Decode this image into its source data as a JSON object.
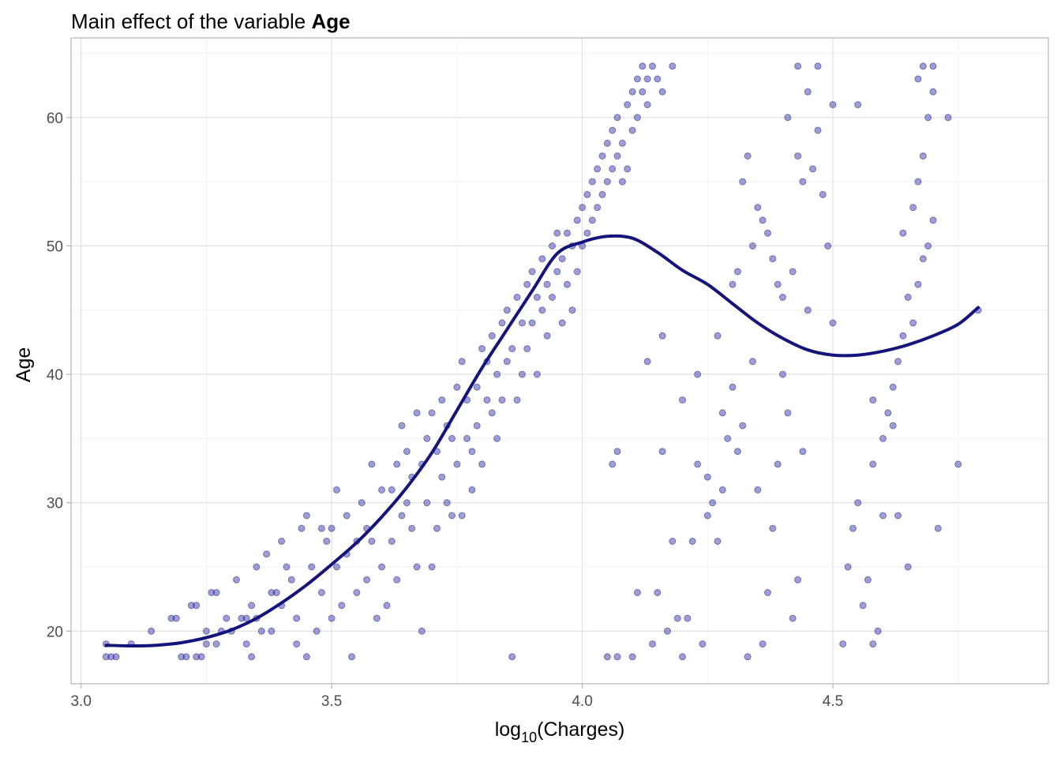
{
  "chart_data": {
    "type": "scatter",
    "title": "Main effect of the variable Age",
    "title_parts": {
      "prefix": "Main effect of the variable ",
      "bold": "Age"
    },
    "xlabel_parts": {
      "base": "log",
      "sub": "10",
      "rest": "(Charges)"
    },
    "ylabel": "Age",
    "xlim": [
      2.98,
      4.93
    ],
    "ylim": [
      15.9,
      66.2
    ],
    "x_ticks": [
      3.0,
      3.5,
      4.0,
      4.5
    ],
    "x_tick_labels": [
      "3.0",
      "3.5",
      "4.0",
      "4.5"
    ],
    "y_ticks": [
      20,
      30,
      40,
      50,
      60
    ],
    "y_tick_labels": [
      "20",
      "30",
      "40",
      "50",
      "60"
    ],
    "grid": true,
    "legend": "none",
    "point_fill": "#3b3bb0",
    "point_stroke": "#1e1e7a",
    "point_opacity": 0.5,
    "line_color": "#14147d",
    "points": [
      [
        3.05,
        18
      ],
      [
        3.06,
        18
      ],
      [
        3.07,
        18
      ],
      [
        3.05,
        19
      ],
      [
        3.1,
        19
      ],
      [
        3.14,
        20
      ],
      [
        3.18,
        21
      ],
      [
        3.19,
        21
      ],
      [
        3.2,
        18
      ],
      [
        3.21,
        18
      ],
      [
        3.22,
        22
      ],
      [
        3.23,
        18
      ],
      [
        3.24,
        18
      ],
      [
        3.23,
        22
      ],
      [
        3.25,
        20
      ],
      [
        3.25,
        19
      ],
      [
        3.26,
        23
      ],
      [
        3.27,
        23
      ],
      [
        3.27,
        19
      ],
      [
        3.28,
        20
      ],
      [
        3.29,
        21
      ],
      [
        3.3,
        20
      ],
      [
        3.31,
        24
      ],
      [
        3.32,
        21
      ],
      [
        3.33,
        21
      ],
      [
        3.33,
        19
      ],
      [
        3.34,
        18
      ],
      [
        3.34,
        22
      ],
      [
        3.35,
        25
      ],
      [
        3.35,
        21
      ],
      [
        3.36,
        20
      ],
      [
        3.37,
        26
      ],
      [
        3.38,
        20
      ],
      [
        3.38,
        23
      ],
      [
        3.39,
        23
      ],
      [
        3.4,
        27
      ],
      [
        3.4,
        22
      ],
      [
        3.41,
        25
      ],
      [
        3.42,
        24
      ],
      [
        3.43,
        19
      ],
      [
        3.43,
        21
      ],
      [
        3.44,
        28
      ],
      [
        3.45,
        29
      ],
      [
        3.45,
        18
      ],
      [
        3.46,
        25
      ],
      [
        3.47,
        20
      ],
      [
        3.48,
        28
      ],
      [
        3.48,
        23
      ],
      [
        3.49,
        27
      ],
      [
        3.5,
        28
      ],
      [
        3.5,
        21
      ],
      [
        3.51,
        25
      ],
      [
        3.51,
        31
      ],
      [
        3.52,
        22
      ],
      [
        3.53,
        29
      ],
      [
        3.53,
        26
      ],
      [
        3.54,
        18
      ],
      [
        3.55,
        27
      ],
      [
        3.55,
        23
      ],
      [
        3.56,
        30
      ],
      [
        3.57,
        28
      ],
      [
        3.57,
        24
      ],
      [
        3.58,
        33
      ],
      [
        3.58,
        27
      ],
      [
        3.59,
        21
      ],
      [
        3.6,
        31
      ],
      [
        3.6,
        25
      ],
      [
        3.61,
        22
      ],
      [
        3.62,
        31
      ],
      [
        3.62,
        27
      ],
      [
        3.63,
        33
      ],
      [
        3.63,
        24
      ],
      [
        3.64,
        36
      ],
      [
        3.64,
        29
      ],
      [
        3.65,
        34
      ],
      [
        3.65,
        30
      ],
      [
        3.66,
        32
      ],
      [
        3.66,
        28
      ],
      [
        3.67,
        37
      ],
      [
        3.67,
        25
      ],
      [
        3.68,
        33
      ],
      [
        3.68,
        20
      ],
      [
        3.69,
        35
      ],
      [
        3.69,
        30
      ],
      [
        3.7,
        37
      ],
      [
        3.7,
        25
      ],
      [
        3.71,
        34
      ],
      [
        3.71,
        28
      ],
      [
        3.72,
        38
      ],
      [
        3.72,
        32
      ],
      [
        3.73,
        36
      ],
      [
        3.73,
        30
      ],
      [
        3.74,
        35
      ],
      [
        3.74,
        29
      ],
      [
        3.75,
        39
      ],
      [
        3.75,
        33
      ],
      [
        3.76,
        41
      ],
      [
        3.76,
        29
      ],
      [
        3.77,
        38
      ],
      [
        3.77,
        35
      ],
      [
        3.78,
        34
      ],
      [
        3.78,
        31
      ],
      [
        3.79,
        39
      ],
      [
        3.79,
        36
      ],
      [
        3.8,
        42
      ],
      [
        3.8,
        33
      ],
      [
        3.81,
        38
      ],
      [
        3.81,
        41
      ],
      [
        3.82,
        37
      ],
      [
        3.82,
        43
      ],
      [
        3.83,
        40
      ],
      [
        3.83,
        35
      ],
      [
        3.84,
        44
      ],
      [
        3.84,
        38
      ],
      [
        3.85,
        45
      ],
      [
        3.85,
        41
      ],
      [
        3.86,
        42
      ],
      [
        3.86,
        18
      ],
      [
        3.87,
        46
      ],
      [
        3.87,
        38
      ],
      [
        3.88,
        44
      ],
      [
        3.88,
        40
      ],
      [
        3.89,
        47
      ],
      [
        3.89,
        42
      ],
      [
        3.9,
        48
      ],
      [
        3.9,
        44
      ],
      [
        3.91,
        46
      ],
      [
        3.91,
        40
      ],
      [
        3.92,
        49
      ],
      [
        3.92,
        45
      ],
      [
        3.93,
        47
      ],
      [
        3.93,
        43
      ],
      [
        3.94,
        50
      ],
      [
        3.94,
        46
      ],
      [
        3.95,
        51
      ],
      [
        3.95,
        48
      ],
      [
        3.96,
        49
      ],
      [
        3.96,
        44
      ],
      [
        3.97,
        51
      ],
      [
        3.97,
        47
      ],
      [
        3.98,
        50
      ],
      [
        3.98,
        45
      ],
      [
        3.99,
        52
      ],
      [
        3.99,
        48
      ],
      [
        4.0,
        53
      ],
      [
        4.0,
        50
      ],
      [
        4.01,
        54
      ],
      [
        4.01,
        51
      ],
      [
        4.02,
        55
      ],
      [
        4.02,
        52
      ],
      [
        4.03,
        56
      ],
      [
        4.03,
        53
      ],
      [
        4.04,
        57
      ],
      [
        4.04,
        54
      ],
      [
        4.05,
        58
      ],
      [
        4.05,
        55
      ],
      [
        4.06,
        59
      ],
      [
        4.06,
        56
      ],
      [
        4.07,
        60
      ],
      [
        4.07,
        57
      ],
      [
        4.08,
        58
      ],
      [
        4.08,
        55
      ],
      [
        4.09,
        61
      ],
      [
        4.09,
        56
      ],
      [
        4.1,
        62
      ],
      [
        4.1,
        59
      ],
      [
        4.11,
        63
      ],
      [
        4.11,
        60
      ],
      [
        4.12,
        62
      ],
      [
        4.12,
        64
      ],
      [
        4.13,
        63
      ],
      [
        4.13,
        61
      ],
      [
        4.14,
        64
      ],
      [
        4.15,
        63
      ],
      [
        4.16,
        62
      ],
      [
        4.18,
        64
      ],
      [
        4.06,
        33
      ],
      [
        4.07,
        34
      ],
      [
        4.05,
        18
      ],
      [
        4.07,
        18
      ],
      [
        4.1,
        18
      ],
      [
        4.11,
        23
      ],
      [
        4.13,
        41
      ],
      [
        4.14,
        19
      ],
      [
        4.15,
        23
      ],
      [
        4.16,
        34
      ],
      [
        4.16,
        43
      ],
      [
        4.17,
        20
      ],
      [
        4.18,
        27
      ],
      [
        4.19,
        21
      ],
      [
        4.2,
        18
      ],
      [
        4.2,
        38
      ],
      [
        4.21,
        21
      ],
      [
        4.22,
        27
      ],
      [
        4.23,
        40
      ],
      [
        4.23,
        33
      ],
      [
        4.24,
        19
      ],
      [
        4.25,
        29
      ],
      [
        4.25,
        32
      ],
      [
        4.26,
        30
      ],
      [
        4.27,
        27
      ],
      [
        4.27,
        43
      ],
      [
        4.28,
        31
      ],
      [
        4.28,
        37
      ],
      [
        4.29,
        35
      ],
      [
        4.3,
        39
      ],
      [
        4.31,
        34
      ],
      [
        4.32,
        36
      ],
      [
        4.33,
        18
      ],
      [
        4.34,
        41
      ],
      [
        4.35,
        31
      ],
      [
        4.36,
        19
      ],
      [
        4.37,
        23
      ],
      [
        4.38,
        28
      ],
      [
        4.39,
        33
      ],
      [
        4.4,
        40
      ],
      [
        4.41,
        37
      ],
      [
        4.42,
        21
      ],
      [
        4.43,
        24
      ],
      [
        4.44,
        34
      ],
      [
        4.45,
        45
      ],
      [
        4.3,
        47
      ],
      [
        4.31,
        48
      ],
      [
        4.32,
        55
      ],
      [
        4.33,
        57
      ],
      [
        4.34,
        50
      ],
      [
        4.35,
        53
      ],
      [
        4.36,
        52
      ],
      [
        4.37,
        51
      ],
      [
        4.38,
        49
      ],
      [
        4.39,
        47
      ],
      [
        4.4,
        46
      ],
      [
        4.41,
        60
      ],
      [
        4.42,
        48
      ],
      [
        4.43,
        57
      ],
      [
        4.44,
        55
      ],
      [
        4.45,
        62
      ],
      [
        4.46,
        56
      ],
      [
        4.47,
        59
      ],
      [
        4.48,
        54
      ],
      [
        4.49,
        50
      ],
      [
        4.5,
        61
      ],
      [
        4.43,
        64
      ],
      [
        4.47,
        64
      ],
      [
        4.5,
        44
      ],
      [
        4.52,
        19
      ],
      [
        4.53,
        25
      ],
      [
        4.54,
        28
      ],
      [
        4.55,
        30
      ],
      [
        4.56,
        22
      ],
      [
        4.57,
        24
      ],
      [
        4.58,
        33
      ],
      [
        4.58,
        19
      ],
      [
        4.59,
        20
      ],
      [
        4.6,
        35
      ],
      [
        4.61,
        37
      ],
      [
        4.62,
        39
      ],
      [
        4.63,
        41
      ],
      [
        4.64,
        43
      ],
      [
        4.65,
        46
      ],
      [
        4.66,
        44
      ],
      [
        4.67,
        47
      ],
      [
        4.68,
        49
      ],
      [
        4.69,
        50
      ],
      [
        4.7,
        52
      ],
      [
        4.66,
        53
      ],
      [
        4.67,
        55
      ],
      [
        4.68,
        57
      ],
      [
        4.69,
        60
      ],
      [
        4.7,
        62
      ],
      [
        4.67,
        63
      ],
      [
        4.68,
        64
      ],
      [
        4.7,
        64
      ],
      [
        4.71,
        28
      ],
      [
        4.73,
        60
      ],
      [
        4.75,
        33
      ],
      [
        4.79,
        45
      ],
      [
        4.55,
        61
      ],
      [
        4.58,
        38
      ],
      [
        4.6,
        29
      ],
      [
        4.62,
        36
      ],
      [
        4.64,
        51
      ],
      [
        4.63,
        29
      ],
      [
        4.65,
        25
      ]
    ],
    "curve": [
      [
        3.05,
        18.9
      ],
      [
        3.1,
        18.85
      ],
      [
        3.15,
        18.9
      ],
      [
        3.2,
        19.1
      ],
      [
        3.25,
        19.5
      ],
      [
        3.3,
        20.1
      ],
      [
        3.35,
        21.0
      ],
      [
        3.4,
        22.2
      ],
      [
        3.45,
        23.6
      ],
      [
        3.5,
        25.2
      ],
      [
        3.55,
        26.9
      ],
      [
        3.6,
        28.9
      ],
      [
        3.65,
        31.2
      ],
      [
        3.7,
        33.9
      ],
      [
        3.75,
        37.2
      ],
      [
        3.8,
        40.5
      ],
      [
        3.85,
        43.5
      ],
      [
        3.9,
        46.5
      ],
      [
        3.95,
        49.4
      ],
      [
        4.0,
        50.3
      ],
      [
        4.05,
        50.75
      ],
      [
        4.1,
        50.6
      ],
      [
        4.15,
        49.5
      ],
      [
        4.2,
        48.1
      ],
      [
        4.25,
        47.0
      ],
      [
        4.3,
        45.5
      ],
      [
        4.35,
        44.0
      ],
      [
        4.4,
        42.8
      ],
      [
        4.45,
        41.9
      ],
      [
        4.5,
        41.5
      ],
      [
        4.55,
        41.5
      ],
      [
        4.6,
        41.8
      ],
      [
        4.65,
        42.3
      ],
      [
        4.7,
        43.0
      ],
      [
        4.75,
        43.9
      ],
      [
        4.79,
        45.2
      ]
    ]
  }
}
